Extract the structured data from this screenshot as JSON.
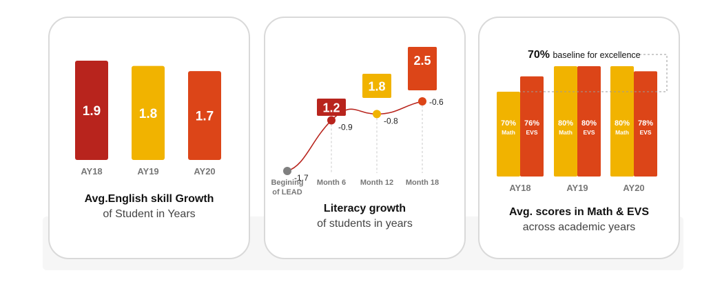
{
  "colors": {
    "dark_red": "#b8241d",
    "yellow": "#f1b300",
    "orange_red": "#dc4518",
    "grey_point": "#808080",
    "axis_text": "#777777"
  },
  "chart_data": [
    {
      "type": "bar",
      "title": "Avg.English skill Growth",
      "subtitle": "of Student in Years",
      "categories": [
        "AY18",
        "AY19",
        "AY20"
      ],
      "values": [
        1.9,
        1.8,
        1.7
      ],
      "value_labels": [
        "1.9",
        "1.8",
        "1.7"
      ],
      "bar_colors": [
        "#b8241d",
        "#f1b300",
        "#dc4518"
      ],
      "grid": false
    },
    {
      "type": "line",
      "title": "Literacy growth",
      "subtitle": "of students in years",
      "x": [
        "Begining of LEAD",
        "Month 6",
        "Month 12",
        "Month 18"
      ],
      "x_lines": [
        [
          "Begining",
          "of LEAD"
        ],
        [
          "Month 6"
        ],
        [
          "Month 12"
        ],
        [
          "Month 18"
        ]
      ],
      "values": [
        -1.7,
        -0.9,
        -0.8,
        -0.6
      ],
      "point_labels": [
        "-1.7",
        "-0.9",
        "-0.8",
        "-0.6"
      ],
      "growth_values": [
        null,
        1.2,
        1.8,
        2.5
      ],
      "growth_labels": [
        "",
        "1.2",
        "1.8",
        "2.5"
      ],
      "point_colors": [
        "#808080",
        "#b8241d",
        "#f1b300",
        "#dc4518"
      ],
      "grid": false
    },
    {
      "type": "bar",
      "title": "Avg. scores in Math & EVS",
      "subtitle": "across academic years",
      "categories": [
        "AY18",
        "AY19",
        "AY20"
      ],
      "series": [
        {
          "name": "Math",
          "values": [
            70,
            80,
            80
          ],
          "value_labels": [
            "70%",
            "80%",
            "80%"
          ],
          "color": "#f1b300"
        },
        {
          "name": "EVS",
          "values": [
            76,
            80,
            78
          ],
          "value_labels": [
            "76%",
            "80%",
            "78%"
          ],
          "color": "#dc4518"
        }
      ],
      "baseline": {
        "value": 70,
        "value_label": "70%",
        "label": "baseline for excellence"
      },
      "grid": false
    }
  ]
}
